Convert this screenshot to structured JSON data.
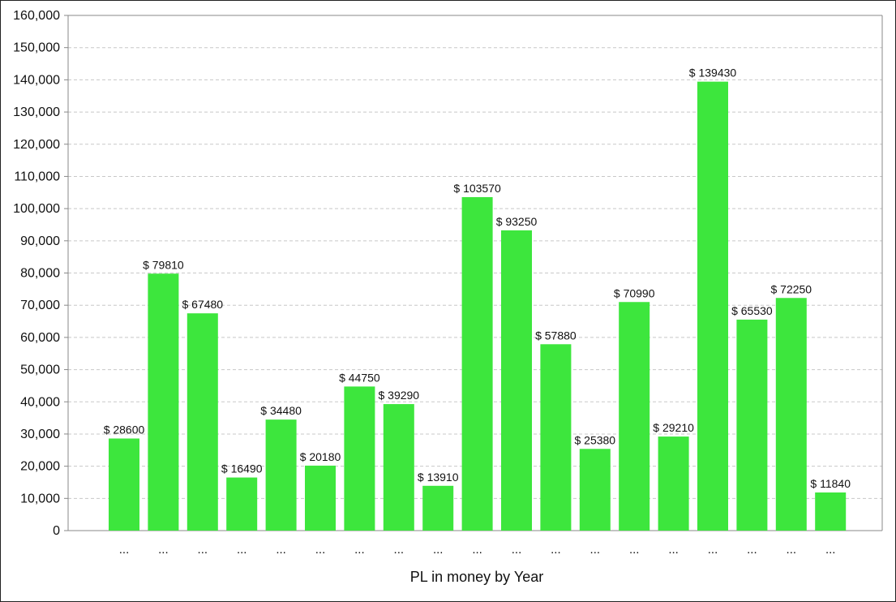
{
  "chart_data": {
    "type": "bar",
    "title": "",
    "xlabel": "PL in money by Year",
    "ylabel": "",
    "ylim": [
      0,
      160000
    ],
    "yticks": [
      0,
      10000,
      20000,
      30000,
      40000,
      50000,
      60000,
      70000,
      80000,
      90000,
      100000,
      110000,
      120000,
      130000,
      140000,
      150000,
      160000
    ],
    "ytick_labels": [
      "0",
      "10,000",
      "20,000",
      "30,000",
      "40,000",
      "50,000",
      "60,000",
      "70,000",
      "80,000",
      "90,000",
      "100,000",
      "110,000",
      "120,000",
      "130,000",
      "140,000",
      "150,000",
      "160,000"
    ],
    "grid": true,
    "bar_color": "#3de63d",
    "categories": [
      "...",
      "...",
      "...",
      "...",
      "...",
      "...",
      "...",
      "...",
      "...",
      "...",
      "...",
      "...",
      "...",
      "...",
      "...",
      "...",
      "...",
      "...",
      "..."
    ],
    "values": [
      28600,
      79810,
      67480,
      16490,
      34480,
      20180,
      44750,
      39290,
      13910,
      103570,
      93250,
      57880,
      25380,
      70990,
      29210,
      139430,
      65530,
      72250,
      11840
    ],
    "data_labels": [
      "$ 28600",
      "$ 79810",
      "$ 67480",
      "$ 16490",
      "$ 34480",
      "$ 20180",
      "$ 44750",
      "$ 39290",
      "$ 13910",
      "$ 103570",
      "$ 93250",
      "$ 57880",
      "$ 25380",
      "$ 70990",
      "$ 29210",
      "$ 139430",
      "$ 65530",
      "$ 72250",
      "$ 11840"
    ]
  }
}
